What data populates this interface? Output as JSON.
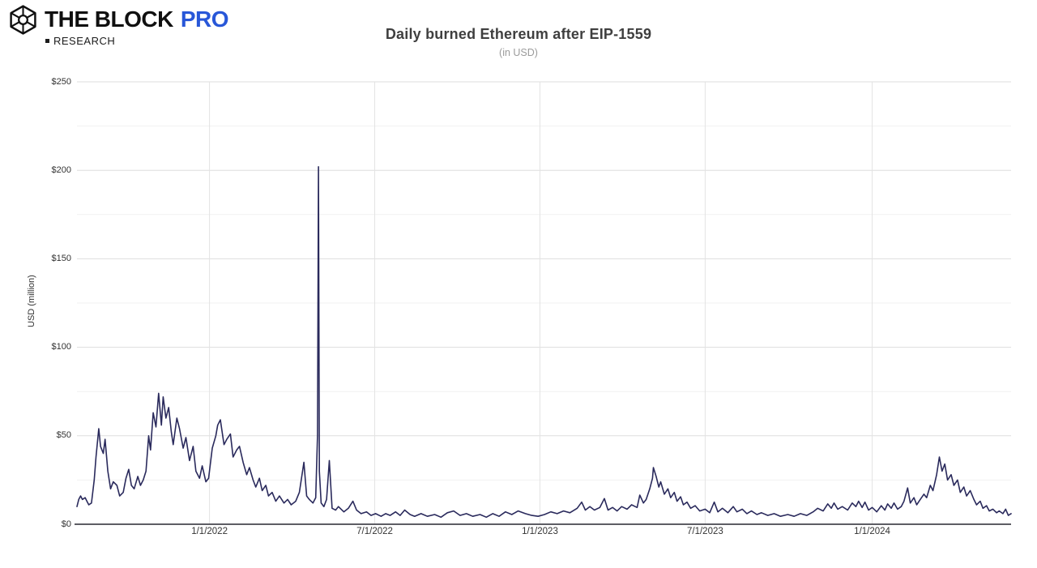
{
  "header": {
    "logo": {
      "brand_block": "THE BLOCK",
      "brand_pro": "PRO",
      "pro_color": "#2857d8",
      "research_label": "RESEARCH"
    },
    "title": "Daily burned Ethereum after EIP-1559",
    "subtitle": "(in USD)"
  },
  "chart_data": {
    "type": "line",
    "title": "Daily burned Ethereum after EIP-1559",
    "subtitle": "(in USD)",
    "ylabel": "USD (million)",
    "xlabel": "",
    "legend_position": "none",
    "grid": true,
    "ylim": [
      0,
      250
    ],
    "y_major_step": 50,
    "y_minor_step": 25,
    "y_ticks": [
      {
        "value": 250,
        "label": "$250"
      },
      {
        "value": 200,
        "label": "$200"
      },
      {
        "value": 150,
        "label": "$150"
      },
      {
        "value": 100,
        "label": "$100"
      },
      {
        "value": 50,
        "label": "$50"
      },
      {
        "value": 0,
        "label": "$0"
      }
    ],
    "x_domain_days": [
      0,
      1029
    ],
    "x_ticks": [
      {
        "day": 146,
        "label": "1/1/2022"
      },
      {
        "day": 328,
        "label": "7/1/2022"
      },
      {
        "day": 510,
        "label": "1/1/2023"
      },
      {
        "day": 692,
        "label": "7/1/2023"
      },
      {
        "day": 876,
        "label": "1/1/2024"
      }
    ],
    "colors": {
      "line": "#2a2a5c",
      "grid_major": "#dedede",
      "grid_minor": "#f1f1f1",
      "grid_vertical": "#e3e3e3",
      "axis_line": "#46464e",
      "tick_text": "#333333"
    },
    "series": [
      {
        "name": "Daily burned Ethereum (USD million)",
        "color": "#2a2a5c",
        "points": [
          [
            0,
            10
          ],
          [
            2,
            14
          ],
          [
            4,
            16
          ],
          [
            6,
            14
          ],
          [
            9,
            15
          ],
          [
            11,
            13
          ],
          [
            13,
            11
          ],
          [
            16,
            12
          ],
          [
            19,
            25
          ],
          [
            21,
            38
          ],
          [
            24,
            54
          ],
          [
            26,
            44
          ],
          [
            29,
            40
          ],
          [
            31,
            48
          ],
          [
            34,
            30
          ],
          [
            37,
            20
          ],
          [
            40,
            24
          ],
          [
            44,
            22
          ],
          [
            47,
            16
          ],
          [
            51,
            18
          ],
          [
            54,
            26
          ],
          [
            57,
            31
          ],
          [
            60,
            22
          ],
          [
            63,
            20
          ],
          [
            67,
            27
          ],
          [
            70,
            22
          ],
          [
            73,
            25
          ],
          [
            76,
            30
          ],
          [
            79,
            50
          ],
          [
            81,
            42
          ],
          [
            84,
            63
          ],
          [
            87,
            55
          ],
          [
            90,
            74
          ],
          [
            93,
            56
          ],
          [
            95,
            72
          ],
          [
            98,
            60
          ],
          [
            101,
            66
          ],
          [
            104,
            52
          ],
          [
            106,
            45
          ],
          [
            110,
            60
          ],
          [
            113,
            54
          ],
          [
            117,
            43
          ],
          [
            120,
            49
          ],
          [
            124,
            36
          ],
          [
            128,
            44
          ],
          [
            131,
            30
          ],
          [
            135,
            26
          ],
          [
            138,
            33
          ],
          [
            142,
            24
          ],
          [
            145,
            26
          ],
          [
            149,
            43
          ],
          [
            153,
            50
          ],
          [
            155,
            56
          ],
          [
            158,
            59
          ],
          [
            162,
            45
          ],
          [
            165,
            48
          ],
          [
            169,
            51
          ],
          [
            172,
            38
          ],
          [
            176,
            42
          ],
          [
            179,
            44
          ],
          [
            183,
            35
          ],
          [
            187,
            28
          ],
          [
            190,
            32
          ],
          [
            194,
            25
          ],
          [
            197,
            21
          ],
          [
            201,
            26
          ],
          [
            204,
            19
          ],
          [
            208,
            22
          ],
          [
            211,
            16
          ],
          [
            215,
            18
          ],
          [
            219,
            13
          ],
          [
            223,
            16
          ],
          [
            228,
            12
          ],
          [
            232,
            14
          ],
          [
            236,
            11
          ],
          [
            241,
            13
          ],
          [
            245,
            18
          ],
          [
            250,
            35
          ],
          [
            253,
            16
          ],
          [
            256,
            14
          ],
          [
            260,
            12
          ],
          [
            263,
            15
          ],
          [
            265,
            50
          ],
          [
            266,
            202
          ],
          [
            267,
            30
          ],
          [
            269,
            12
          ],
          [
            272,
            10
          ],
          [
            275,
            14
          ],
          [
            278,
            36
          ],
          [
            281,
            9
          ],
          [
            285,
            8
          ],
          [
            288,
            10
          ],
          [
            294,
            7
          ],
          [
            299,
            9
          ],
          [
            304,
            13
          ],
          [
            308,
            8
          ],
          [
            313,
            6
          ],
          [
            319,
            7
          ],
          [
            324,
            5
          ],
          [
            329,
            6
          ],
          [
            335,
            4.5
          ],
          [
            340,
            6
          ],
          [
            345,
            5
          ],
          [
            351,
            7
          ],
          [
            356,
            5
          ],
          [
            361,
            8
          ],
          [
            367,
            5.5
          ],
          [
            372,
            4.5
          ],
          [
            379,
            6
          ],
          [
            386,
            4.5
          ],
          [
            394,
            5.5
          ],
          [
            401,
            4
          ],
          [
            408,
            6.5
          ],
          [
            415,
            7.5
          ],
          [
            422,
            5
          ],
          [
            429,
            6
          ],
          [
            436,
            4.5
          ],
          [
            444,
            5.5
          ],
          [
            451,
            4
          ],
          [
            458,
            6
          ],
          [
            465,
            4.5
          ],
          [
            472,
            7
          ],
          [
            479,
            5.5
          ],
          [
            486,
            7.5
          ],
          [
            494,
            6
          ],
          [
            501,
            5
          ],
          [
            508,
            4.5
          ],
          [
            515,
            5.5
          ],
          [
            522,
            7
          ],
          [
            529,
            6
          ],
          [
            536,
            7.5
          ],
          [
            543,
            6.5
          ],
          [
            551,
            9
          ],
          [
            556,
            12.5
          ],
          [
            560,
            8
          ],
          [
            565,
            10
          ],
          [
            570,
            8
          ],
          [
            576,
            9.5
          ],
          [
            581,
            14.5
          ],
          [
            585,
            8
          ],
          [
            590,
            9.5
          ],
          [
            595,
            7.5
          ],
          [
            600,
            10
          ],
          [
            606,
            8.5
          ],
          [
            611,
            11
          ],
          [
            617,
            9.5
          ],
          [
            620,
            16.5
          ],
          [
            624,
            12
          ],
          [
            627,
            14
          ],
          [
            631,
            20
          ],
          [
            634,
            26
          ],
          [
            635,
            32
          ],
          [
            638,
            27
          ],
          [
            641,
            21
          ],
          [
            643,
            24
          ],
          [
            647,
            17
          ],
          [
            651,
            20
          ],
          [
            654,
            15
          ],
          [
            658,
            18
          ],
          [
            661,
            13
          ],
          [
            665,
            15.5
          ],
          [
            668,
            11
          ],
          [
            672,
            12.5
          ],
          [
            676,
            9
          ],
          [
            681,
            10.5
          ],
          [
            686,
            7.5
          ],
          [
            692,
            8.5
          ],
          [
            697,
            6.5
          ],
          [
            702,
            12.5
          ],
          [
            706,
            7
          ],
          [
            711,
            9
          ],
          [
            717,
            6.5
          ],
          [
            723,
            10
          ],
          [
            727,
            7
          ],
          [
            733,
            8.5
          ],
          [
            738,
            6
          ],
          [
            743,
            7.5
          ],
          [
            749,
            5.5
          ],
          [
            754,
            6.5
          ],
          [
            761,
            5
          ],
          [
            768,
            6
          ],
          [
            775,
            4.5
          ],
          [
            783,
            5.5
          ],
          [
            790,
            4.5
          ],
          [
            797,
            6
          ],
          [
            804,
            5
          ],
          [
            811,
            7
          ],
          [
            816,
            9
          ],
          [
            822,
            7.5
          ],
          [
            827,
            11.5
          ],
          [
            831,
            9
          ],
          [
            834,
            12
          ],
          [
            838,
            8.5
          ],
          [
            843,
            10
          ],
          [
            849,
            8
          ],
          [
            854,
            12
          ],
          [
            858,
            10
          ],
          [
            861,
            13
          ],
          [
            865,
            9.5
          ],
          [
            868,
            12.5
          ],
          [
            872,
            8
          ],
          [
            876,
            9.5
          ],
          [
            881,
            7
          ],
          [
            886,
            10.5
          ],
          [
            890,
            8
          ],
          [
            893,
            11.5
          ],
          [
            897,
            9
          ],
          [
            900,
            12
          ],
          [
            904,
            8.5
          ],
          [
            908,
            10
          ],
          [
            911,
            13
          ],
          [
            915,
            20.5
          ],
          [
            918,
            12
          ],
          [
            922,
            15
          ],
          [
            925,
            11
          ],
          [
            929,
            14
          ],
          [
            933,
            17
          ],
          [
            936,
            15
          ],
          [
            940,
            22
          ],
          [
            943,
            19
          ],
          [
            947,
            28
          ],
          [
            950,
            38
          ],
          [
            953,
            30
          ],
          [
            956,
            34
          ],
          [
            959,
            25
          ],
          [
            963,
            28
          ],
          [
            966,
            22
          ],
          [
            970,
            25
          ],
          [
            973,
            18
          ],
          [
            977,
            21
          ],
          [
            980,
            16
          ],
          [
            984,
            19
          ],
          [
            988,
            14
          ],
          [
            991,
            11
          ],
          [
            995,
            13
          ],
          [
            998,
            9
          ],
          [
            1002,
            10.5
          ],
          [
            1005,
            7.5
          ],
          [
            1009,
            8.5
          ],
          [
            1013,
            6.5
          ],
          [
            1016,
            7.5
          ],
          [
            1020,
            6
          ],
          [
            1023,
            8.5
          ],
          [
            1026,
            5
          ],
          [
            1029,
            6
          ]
        ]
      }
    ]
  }
}
